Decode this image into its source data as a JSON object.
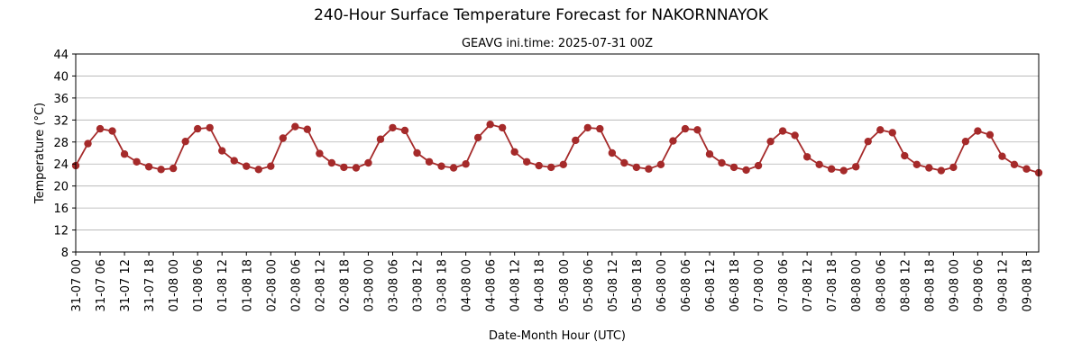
{
  "chart_data": {
    "type": "line",
    "title": "240-Hour Surface Temperature Forecast for NAKORNNAYOK",
    "subtitle": "GEAVG ini.time: 2025-07-31 00Z",
    "xlabel": "Date-Month Hour (UTC)",
    "ylabel": "Temperature (°C)",
    "ylim": [
      8,
      44
    ],
    "yticks": [
      8,
      12,
      16,
      20,
      24,
      28,
      32,
      36,
      40,
      44
    ],
    "grid": "horizontal",
    "x_step_hours": 3,
    "x_tick_step_hours": 6,
    "xtick_labels": [
      "31-07 00",
      "31-07 06",
      "31-07 12",
      "31-07 18",
      "01-08 00",
      "01-08 06",
      "01-08 12",
      "01-08 18",
      "02-08 00",
      "02-08 06",
      "02-08 12",
      "02-08 18",
      "03-08 00",
      "03-08 06",
      "03-08 12",
      "03-08 18",
      "04-08 00",
      "04-08 06",
      "04-08 12",
      "04-08 18",
      "05-08 00",
      "05-08 06",
      "05-08 12",
      "05-08 18",
      "06-08 00",
      "06-08 06",
      "06-08 12",
      "06-08 18",
      "07-08 00",
      "07-08 06",
      "07-08 12",
      "07-08 18",
      "08-08 00",
      "08-08 06",
      "08-08 12",
      "08-08 18",
      "09-08 00",
      "09-08 06",
      "09-08 12",
      "09-08 18"
    ],
    "series": [
      {
        "color": "#a52a2a",
        "values": [
          23.7,
          27.7,
          30.4,
          30.0,
          25.8,
          24.4,
          23.5,
          23.0,
          23.2,
          28.1,
          30.4,
          30.6,
          26.4,
          24.6,
          23.6,
          23.0,
          23.6,
          28.7,
          30.8,
          30.3,
          25.9,
          24.2,
          23.4,
          23.3,
          24.2,
          28.5,
          30.6,
          30.1,
          26.0,
          24.4,
          23.6,
          23.3,
          24.0,
          28.8,
          31.2,
          30.6,
          26.2,
          24.4,
          23.7,
          23.4,
          23.9,
          28.3,
          30.6,
          30.4,
          26.0,
          24.2,
          23.4,
          23.1,
          23.9,
          28.2,
          30.4,
          30.2,
          25.8,
          24.2,
          23.4,
          22.9,
          23.7,
          28.1,
          30.0,
          29.2,
          25.3,
          23.9,
          23.1,
          22.8,
          23.5,
          28.1,
          30.2,
          29.7,
          25.5,
          23.9,
          23.3,
          22.8,
          23.4,
          28.1,
          30.0,
          29.3,
          25.4,
          23.9,
          23.1,
          22.4
        ]
      }
    ]
  }
}
